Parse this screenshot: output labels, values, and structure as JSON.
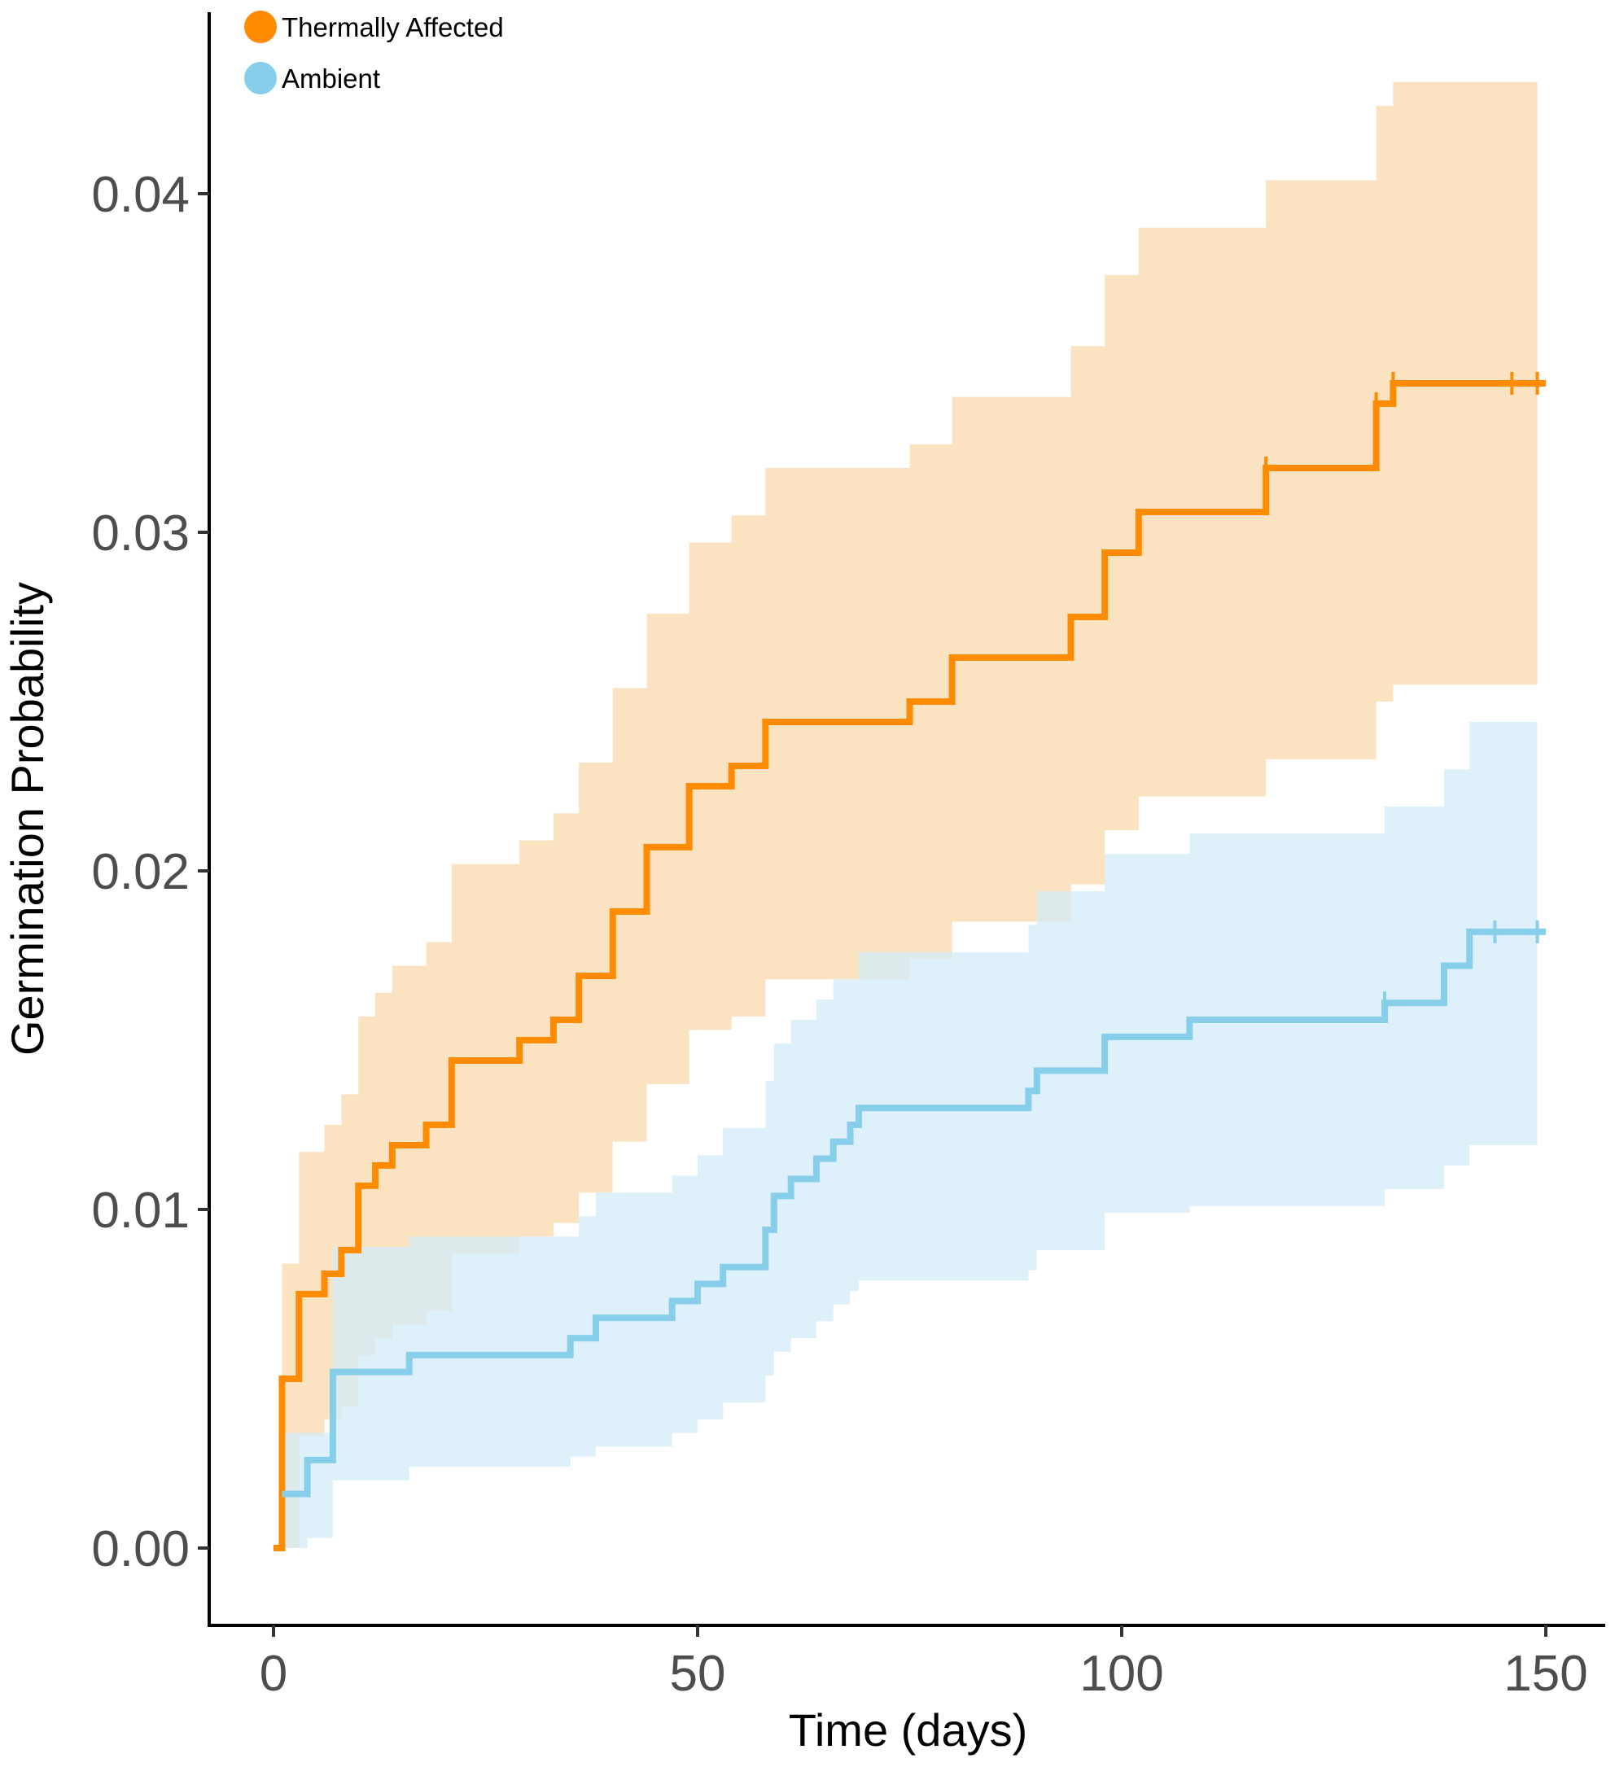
{
  "chart_data": {
    "type": "line",
    "subtype": "kaplan-meier step curves with confidence bands",
    "xlabel": "Time (days)",
    "ylabel": "Germination Probability",
    "xlim": [
      -7.5,
      157.5
    ],
    "ylim": [
      -0.002,
      0.0445
    ],
    "x_ticks": [
      0,
      50,
      100,
      150
    ],
    "x_tick_labels": [
      "0",
      "50",
      "100",
      "150"
    ],
    "y_ticks": [
      0,
      0.01,
      0.02,
      0.03,
      0.04
    ],
    "y_tick_labels": [
      "0.00",
      "0.01",
      "0.02",
      "0.03",
      "0.04"
    ],
    "grid": false,
    "legend_position": "top-left",
    "series": [
      {
        "name": "Thermally Affected",
        "color": "#FF8C00",
        "band_color": "#FAD9AD",
        "steps": [
          {
            "x": 0,
            "y": 0
          },
          {
            "x": 1,
            "y": 0.005
          },
          {
            "x": 3,
            "y": 0.0075
          },
          {
            "x": 6,
            "y": 0.0081
          },
          {
            "x": 8,
            "y": 0.0088
          },
          {
            "x": 10,
            "y": 0.0107
          },
          {
            "x": 12,
            "y": 0.0113
          },
          {
            "x": 14,
            "y": 0.0119
          },
          {
            "x": 18,
            "y": 0.0125
          },
          {
            "x": 21,
            "y": 0.0144
          },
          {
            "x": 29,
            "y": 0.015
          },
          {
            "x": 33,
            "y": 0.0156
          },
          {
            "x": 36,
            "y": 0.0169
          },
          {
            "x": 40,
            "y": 0.0188
          },
          {
            "x": 44,
            "y": 0.0207
          },
          {
            "x": 49,
            "y": 0.0225
          },
          {
            "x": 54,
            "y": 0.0231
          },
          {
            "x": 58,
            "y": 0.0244
          },
          {
            "x": 75,
            "y": 0.025
          },
          {
            "x": 80,
            "y": 0.0263
          },
          {
            "x": 94,
            "y": 0.0275
          },
          {
            "x": 98,
            "y": 0.0294
          },
          {
            "x": 102,
            "y": 0.0306
          },
          {
            "x": 117,
            "y": 0.0319
          },
          {
            "x": 130,
            "y": 0.0338
          },
          {
            "x": 132,
            "y": 0.0344
          },
          {
            "x": 150,
            "y": 0.0344
          }
        ],
        "ci_upper": [
          {
            "x": 1,
            "y": 0.0084
          },
          {
            "x": 3,
            "y": 0.0117
          },
          {
            "x": 6,
            "y": 0.0125
          },
          {
            "x": 8,
            "y": 0.0134
          },
          {
            "x": 10,
            "y": 0.0157
          },
          {
            "x": 12,
            "y": 0.0164
          },
          {
            "x": 14,
            "y": 0.0172
          },
          {
            "x": 18,
            "y": 0.0179
          },
          {
            "x": 21,
            "y": 0.0202
          },
          {
            "x": 29,
            "y": 0.0209
          },
          {
            "x": 33,
            "y": 0.0217
          },
          {
            "x": 36,
            "y": 0.0232
          },
          {
            "x": 40,
            "y": 0.0254
          },
          {
            "x": 44,
            "y": 0.0276
          },
          {
            "x": 49,
            "y": 0.0297
          },
          {
            "x": 54,
            "y": 0.0305
          },
          {
            "x": 58,
            "y": 0.0319
          },
          {
            "x": 75,
            "y": 0.0326
          },
          {
            "x": 80,
            "y": 0.034
          },
          {
            "x": 94,
            "y": 0.0355
          },
          {
            "x": 98,
            "y": 0.0376
          },
          {
            "x": 102,
            "y": 0.039
          },
          {
            "x": 117,
            "y": 0.0404
          },
          {
            "x": 130,
            "y": 0.0426
          },
          {
            "x": 132,
            "y": 0.0433
          },
          {
            "x": 149,
            "y": 0.0433
          }
        ],
        "ci_lower": [
          {
            "x": 1,
            "y": 0.0
          },
          {
            "x": 3,
            "y": 0.0033
          },
          {
            "x": 6,
            "y": 0.0038
          },
          {
            "x": 8,
            "y": 0.0042
          },
          {
            "x": 10,
            "y": 0.0057
          },
          {
            "x": 12,
            "y": 0.0062
          },
          {
            "x": 14,
            "y": 0.0066
          },
          {
            "x": 18,
            "y": 0.007
          },
          {
            "x": 21,
            "y": 0.0087
          },
          {
            "x": 29,
            "y": 0.0092
          },
          {
            "x": 33,
            "y": 0.0096
          },
          {
            "x": 36,
            "y": 0.0105
          },
          {
            "x": 40,
            "y": 0.012
          },
          {
            "x": 44,
            "y": 0.0137
          },
          {
            "x": 49,
            "y": 0.0153
          },
          {
            "x": 54,
            "y": 0.0157
          },
          {
            "x": 58,
            "y": 0.0168
          },
          {
            "x": 75,
            "y": 0.0174
          },
          {
            "x": 80,
            "y": 0.0185
          },
          {
            "x": 94,
            "y": 0.0196
          },
          {
            "x": 98,
            "y": 0.0212
          },
          {
            "x": 102,
            "y": 0.0222
          },
          {
            "x": 117,
            "y": 0.0233
          },
          {
            "x": 130,
            "y": 0.025
          },
          {
            "x": 132,
            "y": 0.0255
          },
          {
            "x": 149,
            "y": 0.0255
          }
        ],
        "censor_marks": [
          117,
          130,
          132,
          146,
          149
        ]
      },
      {
        "name": "Ambient",
        "color": "#87CEEB",
        "band_color": "#D3EBF7",
        "steps": [
          {
            "x": 1,
            "y": 0.0016
          },
          {
            "x": 4,
            "y": 0.0026
          },
          {
            "x": 7,
            "y": 0.0052
          },
          {
            "x": 16,
            "y": 0.0057
          },
          {
            "x": 35,
            "y": 0.0062
          },
          {
            "x": 38,
            "y": 0.0068
          },
          {
            "x": 47,
            "y": 0.0073
          },
          {
            "x": 50,
            "y": 0.0078
          },
          {
            "x": 53,
            "y": 0.0083
          },
          {
            "x": 58,
            "y": 0.0094
          },
          {
            "x": 59,
            "y": 0.0104
          },
          {
            "x": 61,
            "y": 0.0109
          },
          {
            "x": 64,
            "y": 0.0115
          },
          {
            "x": 66,
            "y": 0.012
          },
          {
            "x": 68,
            "y": 0.0125
          },
          {
            "x": 69,
            "y": 0.013
          },
          {
            "x": 89,
            "y": 0.0135
          },
          {
            "x": 90,
            "y": 0.0141
          },
          {
            "x": 98,
            "y": 0.0151
          },
          {
            "x": 108,
            "y": 0.0156
          },
          {
            "x": 131,
            "y": 0.0161
          },
          {
            "x": 138,
            "y": 0.0172
          },
          {
            "x": 141,
            "y": 0.0182
          },
          {
            "x": 150,
            "y": 0.0182
          }
        ],
        "ci_upper": [
          {
            "x": 1,
            "y": 0.0034
          },
          {
            "x": 4,
            "y": 0.0034
          },
          {
            "x": 7,
            "y": 0.0089
          },
          {
            "x": 16,
            "y": 0.0092
          },
          {
            "x": 35,
            "y": 0.0092
          },
          {
            "x": 36,
            "y": 0.0098
          },
          {
            "x": 38,
            "y": 0.0105
          },
          {
            "x": 47,
            "y": 0.011
          },
          {
            "x": 50,
            "y": 0.0116
          },
          {
            "x": 53,
            "y": 0.0124
          },
          {
            "x": 58,
            "y": 0.0138
          },
          {
            "x": 59,
            "y": 0.0149
          },
          {
            "x": 61,
            "y": 0.0156
          },
          {
            "x": 64,
            "y": 0.0162
          },
          {
            "x": 66,
            "y": 0.0168
          },
          {
            "x": 69,
            "y": 0.0176
          },
          {
            "x": 89,
            "y": 0.0184
          },
          {
            "x": 90,
            "y": 0.0194
          },
          {
            "x": 98,
            "y": 0.0205
          },
          {
            "x": 108,
            "y": 0.0211
          },
          {
            "x": 131,
            "y": 0.0219
          },
          {
            "x": 138,
            "y": 0.023
          },
          {
            "x": 141,
            "y": 0.0244
          },
          {
            "x": 149,
            "y": 0.0244
          }
        ],
        "ci_lower": [
          {
            "x": 1,
            "y": 0.0
          },
          {
            "x": 4,
            "y": 0.0003
          },
          {
            "x": 7,
            "y": 0.002
          },
          {
            "x": 16,
            "y": 0.0024
          },
          {
            "x": 35,
            "y": 0.0027
          },
          {
            "x": 38,
            "y": 0.003
          },
          {
            "x": 47,
            "y": 0.0034
          },
          {
            "x": 50,
            "y": 0.0038
          },
          {
            "x": 53,
            "y": 0.0043
          },
          {
            "x": 58,
            "y": 0.0051
          },
          {
            "x": 59,
            "y": 0.0058
          },
          {
            "x": 61,
            "y": 0.0062
          },
          {
            "x": 64,
            "y": 0.0067
          },
          {
            "x": 66,
            "y": 0.0072
          },
          {
            "x": 68,
            "y": 0.0076
          },
          {
            "x": 69,
            "y": 0.0079
          },
          {
            "x": 89,
            "y": 0.0082
          },
          {
            "x": 90,
            "y": 0.0088
          },
          {
            "x": 98,
            "y": 0.0099
          },
          {
            "x": 108,
            "y": 0.0101
          },
          {
            "x": 131,
            "y": 0.0106
          },
          {
            "x": 138,
            "y": 0.0113
          },
          {
            "x": 141,
            "y": 0.0119
          },
          {
            "x": 149,
            "y": 0.0119
          }
        ],
        "censor_marks": [
          131,
          144,
          149
        ]
      }
    ]
  }
}
